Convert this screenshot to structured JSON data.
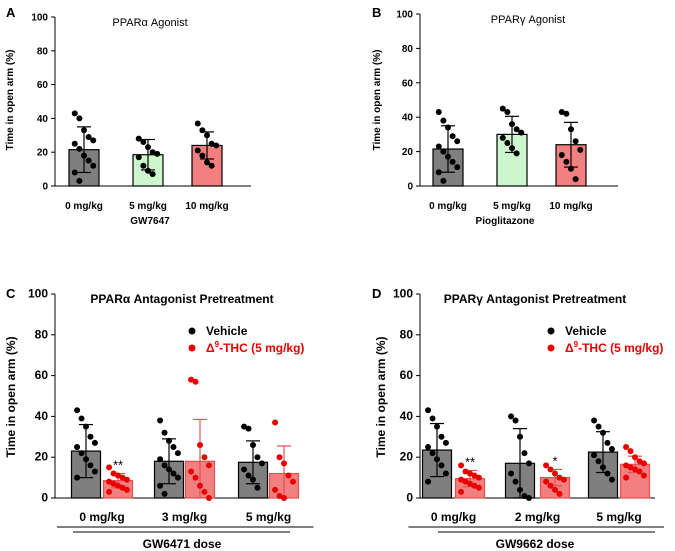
{
  "chart_data": [
    {
      "type": "bar",
      "panel": "A",
      "title": "PPARα Agonist",
      "ylabel": "Time in open arm (%)",
      "xlabel": "GW7647",
      "ylim": [
        0,
        100
      ],
      "yticks": [
        0,
        20,
        40,
        60,
        80,
        100
      ],
      "categories": [
        "0 mg/kg",
        "5 mg/kg",
        "10 mg/kg"
      ],
      "series": [
        {
          "name": "PPARα Agonist",
          "colors": [
            "#7f7f7f",
            "#ccf7cc",
            "#f28080"
          ],
          "values": [
            21.5,
            18.5,
            24
          ],
          "errors": [
            13.5,
            9,
            8
          ],
          "points": [
            [
              43,
              40,
              33,
              29,
              27,
              25,
              22,
              18,
              15,
              12,
              8,
              3
            ],
            [
              28,
              26,
              23,
              20,
              19,
              17,
              12,
              9,
              7
            ],
            [
              37,
              33,
              30,
              25,
              24,
              21,
              18,
              14,
              12
            ]
          ]
        }
      ]
    },
    {
      "type": "bar",
      "panel": "B",
      "title": "PPARγ Agonist",
      "ylabel": "Time in open arm (%)",
      "xlabel": "Pioglitazone",
      "ylim": [
        0,
        100
      ],
      "yticks": [
        0,
        20,
        40,
        60,
        80,
        100
      ],
      "categories": [
        "0 mg/kg",
        "5 mg/kg",
        "10 mg/kg"
      ],
      "series": [
        {
          "name": "PPARγ Agonist",
          "colors": [
            "#7f7f7f",
            "#ccf7cc",
            "#f28080"
          ],
          "values": [
            21.5,
            30,
            24
          ],
          "errors": [
            13.5,
            10.5,
            13
          ],
          "points": [
            [
              43,
              38,
              34,
              29,
              26,
              23,
              20,
              17,
              14,
              11,
              8,
              3
            ],
            [
              45,
              43,
              36,
              33,
              31,
              28,
              25,
              22,
              19
            ],
            [
              43,
              42,
              33,
              26,
              21,
              18,
              14,
              10,
              4
            ]
          ]
        }
      ]
    },
    {
      "type": "bar",
      "panel": "C",
      "title": "PPARα Antagonist Pretreatment",
      "ylabel": "Time in open arm (%)",
      "xlabel": "GW6471 dose",
      "ylim": [
        0,
        100
      ],
      "yticks": [
        0,
        20,
        40,
        60,
        80,
        100
      ],
      "categories": [
        "0 mg/kg",
        "3 mg/kg",
        "5 mg/kg"
      ],
      "legend": [
        "Vehicle",
        "Δ9-THC (5 mg/kg)"
      ],
      "annotations": [
        "**",
        "",
        ""
      ],
      "series": [
        {
          "name": "Vehicle",
          "color": "#7f7f7f",
          "values": [
            23,
            18,
            17.5
          ],
          "errors": [
            13,
            11,
            10.5
          ],
          "points": [
            [
              43,
              39,
              35,
              30,
              27,
              25,
              22,
              19,
              16,
              13,
              10
            ],
            [
              38,
              32,
              28,
              25,
              22,
              19,
              16,
              14,
              12,
              10,
              6,
              2
            ],
            [
              35,
              34,
              26,
              20,
              17,
              14,
              11,
              9,
              5
            ]
          ]
        },
        {
          "name": "Δ9-THC (5 mg/kg)",
          "color": "#f28080",
          "values": [
            8.5,
            18,
            12
          ],
          "errors": [
            3.5,
            20.5,
            13.5
          ],
          "points": [
            [
              15,
              12,
              11,
              10,
              9,
              8,
              7,
              6,
              5,
              4,
              3
            ],
            [
              58,
              57,
              26,
              20,
              16,
              13,
              10,
              6,
              3,
              0
            ],
            [
              37,
              20,
              17,
              11,
              8,
              4,
              1,
              0
            ]
          ]
        }
      ]
    },
    {
      "type": "bar",
      "panel": "D",
      "title": "PPARγ Antagonist Pretreatment",
      "ylabel": "Time in open arm (%)",
      "xlabel": "GW9662 dose",
      "ylim": [
        0,
        100
      ],
      "yticks": [
        0,
        20,
        40,
        60,
        80,
        100
      ],
      "categories": [
        "0 mg/kg",
        "2 mg/kg",
        "5 mg/kg"
      ],
      "legend": [
        "Vehicle",
        "Δ9-THC (5 mg/kg)"
      ],
      "annotations": [
        "**",
        "*",
        ""
      ],
      "series": [
        {
          "name": "Vehicle",
          "color": "#7f7f7f",
          "values": [
            23.5,
            17,
            22.5
          ],
          "errors": [
            13,
            17,
            10
          ],
          "points": [
            [
              43,
              39,
              35,
              30,
              27,
              25,
              22,
              19,
              16,
              12,
              8
            ],
            [
              40,
              38,
              30,
              22,
              17,
              12,
              8,
              4,
              1,
              0
            ],
            [
              38,
              35,
              32,
              27,
              24,
              21,
              18,
              15,
              12,
              9
            ]
          ]
        },
        {
          "name": "Δ9-THC (5 mg/kg)",
          "color": "#f28080",
          "values": [
            9.5,
            10,
            16.5
          ],
          "errors": [
            4,
            4,
            4
          ],
          "points": [
            [
              16,
              13,
              12,
              11,
              10,
              9,
              8,
              7,
              6,
              5,
              3
            ],
            [
              16,
              14,
              12,
              10,
              9,
              8,
              6,
              4,
              2
            ],
            [
              25,
              23,
              20,
              18,
              17,
              16,
              15,
              14,
              13,
              11,
              10
            ]
          ]
        }
      ]
    }
  ],
  "labels": {
    "a": "A",
    "b": "B",
    "c": "C",
    "d": "D"
  }
}
